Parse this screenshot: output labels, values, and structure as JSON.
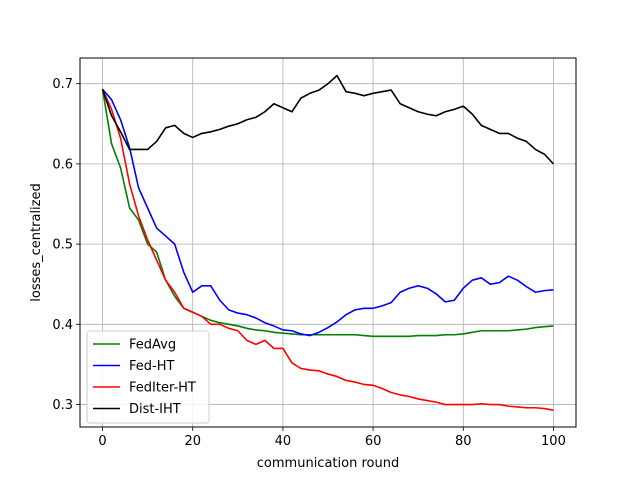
{
  "chart_data": {
    "type": "line",
    "xlabel": "communication round",
    "ylabel": "losses_centralized",
    "xlim": [
      -5,
      105
    ],
    "ylim": [
      0.272,
      0.732
    ],
    "xticks": [
      0,
      20,
      40,
      60,
      80,
      100
    ],
    "yticks": [
      0.3,
      0.4,
      0.5,
      0.6,
      0.7
    ],
    "xtick_labels": [
      "0",
      "20",
      "40",
      "60",
      "80",
      "100"
    ],
    "ytick_labels": [
      "0.3",
      "0.4",
      "0.5",
      "0.6",
      "0.7"
    ],
    "grid": true,
    "legend_position": "lower-left",
    "series": [
      {
        "name": "FedAvg",
        "color": "#008000",
        "x": [
          0,
          2,
          4,
          6,
          8,
          10,
          12,
          14,
          16,
          18,
          20,
          22,
          24,
          26,
          28,
          30,
          32,
          34,
          36,
          38,
          40,
          42,
          44,
          46,
          48,
          50,
          52,
          54,
          56,
          58,
          60,
          62,
          64,
          66,
          68,
          70,
          72,
          74,
          76,
          78,
          80,
          82,
          84,
          86,
          88,
          90,
          92,
          94,
          96,
          98,
          100
        ],
        "y": [
          0.693,
          0.625,
          0.595,
          0.545,
          0.53,
          0.5,
          0.49,
          0.455,
          0.435,
          0.42,
          0.415,
          0.41,
          0.405,
          0.402,
          0.4,
          0.398,
          0.395,
          0.393,
          0.392,
          0.39,
          0.389,
          0.388,
          0.387,
          0.387,
          0.387,
          0.387,
          0.387,
          0.387,
          0.387,
          0.386,
          0.385,
          0.385,
          0.385,
          0.385,
          0.385,
          0.386,
          0.386,
          0.386,
          0.387,
          0.387,
          0.388,
          0.39,
          0.392,
          0.392,
          0.392,
          0.392,
          0.393,
          0.394,
          0.396,
          0.397,
          0.398
        ]
      },
      {
        "name": "Fed-HT",
        "color": "#0000ff",
        "x": [
          0,
          2,
          4,
          6,
          8,
          10,
          12,
          14,
          16,
          18,
          20,
          22,
          24,
          26,
          28,
          30,
          32,
          34,
          36,
          38,
          40,
          42,
          44,
          46,
          48,
          50,
          52,
          54,
          56,
          58,
          60,
          62,
          64,
          66,
          68,
          70,
          72,
          74,
          76,
          78,
          80,
          82,
          84,
          86,
          88,
          90,
          92,
          94,
          96,
          98,
          100
        ],
        "y": [
          0.693,
          0.68,
          0.655,
          0.62,
          0.57,
          0.545,
          0.52,
          0.51,
          0.5,
          0.465,
          0.44,
          0.448,
          0.448,
          0.43,
          0.418,
          0.414,
          0.412,
          0.408,
          0.402,
          0.398,
          0.393,
          0.392,
          0.388,
          0.386,
          0.39,
          0.396,
          0.403,
          0.412,
          0.418,
          0.42,
          0.42,
          0.423,
          0.427,
          0.44,
          0.445,
          0.448,
          0.445,
          0.438,
          0.428,
          0.43,
          0.445,
          0.455,
          0.458,
          0.45,
          0.452,
          0.46,
          0.455,
          0.447,
          0.44,
          0.442,
          0.443
        ]
      },
      {
        "name": "FedIter-HT",
        "color": "#ff0000",
        "x": [
          0,
          2,
          4,
          6,
          8,
          10,
          12,
          14,
          16,
          18,
          20,
          22,
          24,
          26,
          28,
          30,
          32,
          34,
          36,
          38,
          40,
          42,
          44,
          46,
          48,
          50,
          52,
          54,
          56,
          58,
          60,
          62,
          64,
          66,
          68,
          70,
          72,
          74,
          76,
          78,
          80,
          82,
          84,
          86,
          88,
          90,
          92,
          94,
          96,
          98,
          100
        ],
        "y": [
          0.693,
          0.668,
          0.632,
          0.575,
          0.535,
          0.505,
          0.48,
          0.455,
          0.44,
          0.42,
          0.415,
          0.41,
          0.4,
          0.4,
          0.395,
          0.392,
          0.38,
          0.375,
          0.38,
          0.37,
          0.37,
          0.352,
          0.345,
          0.343,
          0.342,
          0.338,
          0.335,
          0.33,
          0.328,
          0.325,
          0.324,
          0.32,
          0.315,
          0.312,
          0.31,
          0.307,
          0.305,
          0.303,
          0.3,
          0.3,
          0.3,
          0.3,
          0.301,
          0.3,
          0.3,
          0.298,
          0.297,
          0.296,
          0.296,
          0.295,
          0.293
        ]
      },
      {
        "name": "Dist-IHT",
        "color": "#000000",
        "x": [
          0,
          2,
          4,
          6,
          8,
          10,
          12,
          14,
          16,
          18,
          20,
          22,
          24,
          26,
          28,
          30,
          32,
          34,
          36,
          38,
          40,
          42,
          44,
          46,
          48,
          50,
          52,
          54,
          56,
          58,
          60,
          62,
          64,
          66,
          68,
          70,
          72,
          74,
          76,
          78,
          80,
          82,
          84,
          86,
          88,
          90,
          92,
          94,
          96,
          98,
          100
        ],
        "y": [
          0.693,
          0.66,
          0.64,
          0.618,
          0.618,
          0.618,
          0.628,
          0.645,
          0.648,
          0.638,
          0.633,
          0.638,
          0.64,
          0.643,
          0.647,
          0.65,
          0.655,
          0.658,
          0.665,
          0.675,
          0.67,
          0.665,
          0.682,
          0.688,
          0.692,
          0.7,
          0.71,
          0.69,
          0.688,
          0.685,
          0.688,
          0.69,
          0.692,
          0.675,
          0.67,
          0.665,
          0.662,
          0.66,
          0.665,
          0.668,
          0.672,
          0.662,
          0.648,
          0.643,
          0.638,
          0.638,
          0.632,
          0.628,
          0.618,
          0.612,
          0.6
        ]
      }
    ]
  }
}
